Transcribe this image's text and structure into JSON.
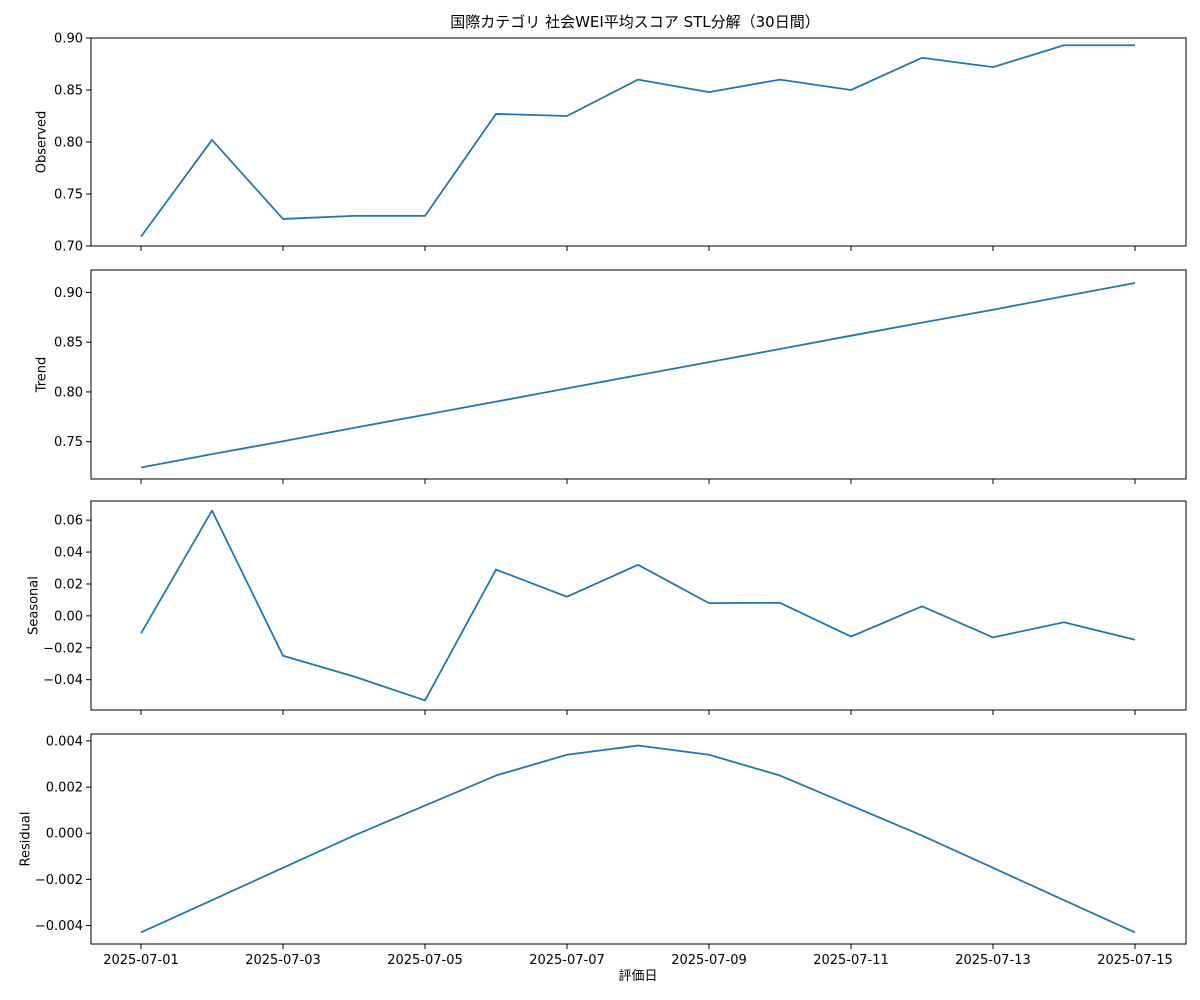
{
  "chart_data": {
    "type": "line",
    "title": "国際カテゴリ 社会WEI平均スコア STL分解（30日間）",
    "xlabel": "評価日",
    "x": [
      "2025-07-01",
      "2025-07-02",
      "2025-07-03",
      "2025-07-04",
      "2025-07-05",
      "2025-07-06",
      "2025-07-07",
      "2025-07-08",
      "2025-07-09",
      "2025-07-10",
      "2025-07-11",
      "2025-07-12",
      "2025-07-13",
      "2025-07-14",
      "2025-07-15"
    ],
    "x_ticks": [
      "2025-07-01",
      "2025-07-03",
      "2025-07-05",
      "2025-07-07",
      "2025-07-09",
      "2025-07-11",
      "2025-07-13",
      "2025-07-15"
    ],
    "line_color": "#1f77b4",
    "grid": false,
    "panels": [
      {
        "ylabel": "Observed",
        "ylim": [
          0.7,
          0.9
        ],
        "yticks": [
          "0.70",
          "0.75",
          "0.80",
          "0.85",
          "0.90"
        ],
        "values": [
          0.709,
          0.802,
          0.726,
          0.729,
          0.729,
          0.827,
          0.825,
          0.86,
          0.848,
          0.86,
          0.85,
          0.881,
          0.872,
          0.893,
          0.893
        ]
      },
      {
        "ylabel": "Trend",
        "ylim": [
          0.7125,
          0.9225
        ],
        "yticks": [
          "0.75",
          "0.80",
          "0.85",
          "0.90"
        ],
        "values": [
          0.724,
          0.7375,
          0.7504,
          0.7639,
          0.7771,
          0.7902,
          0.8036,
          0.8168,
          0.8299,
          0.8431,
          0.8565,
          0.8696,
          0.8826,
          0.8961,
          0.9094
        ]
      },
      {
        "ylabel": "Seasonal",
        "ylim": [
          -0.059,
          0.072
        ],
        "yticks": [
          "−0.04",
          "−0.02",
          "0.00",
          "0.02",
          "0.04",
          "0.06"
        ],
        "values": [
          -0.011,
          0.066,
          -0.025,
          -0.038,
          -0.053,
          0.029,
          0.012,
          0.032,
          0.008,
          0.0082,
          -0.013,
          0.006,
          -0.0135,
          -0.004,
          -0.015
        ]
      },
      {
        "ylabel": "Residual",
        "ylim": [
          -0.0048,
          0.0043
        ],
        "yticks": [
          "−0.004",
          "−0.002",
          "0.000",
          "0.002",
          "0.004"
        ],
        "values": [
          -0.0043,
          -0.0029,
          -0.0015,
          -0.0001,
          0.0012,
          0.0025,
          0.0034,
          0.0038,
          0.0034,
          0.0025,
          0.0012,
          -0.0001,
          -0.0015,
          -0.0029,
          -0.0043
        ]
      }
    ]
  }
}
